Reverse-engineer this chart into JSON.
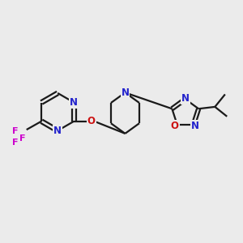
{
  "bg_color": "#ebebeb",
  "bond_color": "#1a1a1a",
  "N_color": "#2222cc",
  "O_color": "#cc1111",
  "F_color": "#cc00cc",
  "line_width": 1.6,
  "font_size_atom": 8.5,
  "fig_width": 3.0,
  "fig_height": 3.0,
  "xlim": [
    0,
    10
  ],
  "ylim": [
    0,
    10
  ]
}
